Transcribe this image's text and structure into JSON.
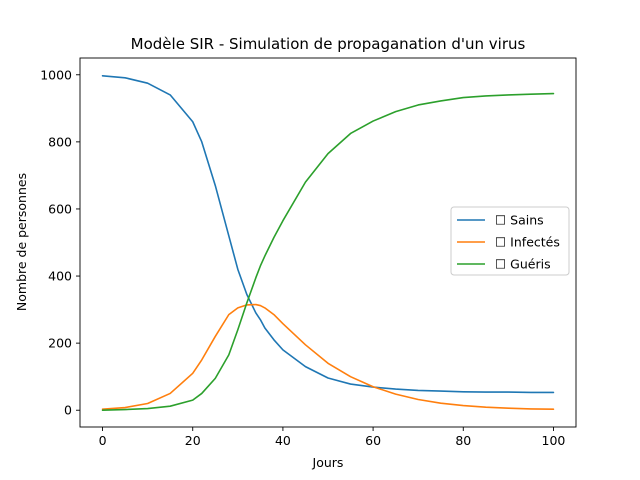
{
  "chart_data": {
    "type": "line",
    "title": "Modèle SIR - Simulation de propaganation d'un virus",
    "xlabel": "Jours",
    "ylabel": "Nombre de personnes",
    "xlim": [
      -5,
      105
    ],
    "ylim": [
      -50,
      1050
    ],
    "xticks": [
      0,
      20,
      40,
      60,
      80,
      100
    ],
    "yticks": [
      0,
      200,
      400,
      600,
      800,
      1000
    ],
    "grid": false,
    "legend_position": "center-right",
    "x": [
      0,
      5,
      10,
      15,
      20,
      22,
      25,
      28,
      30,
      32,
      34,
      35,
      36,
      38,
      40,
      45,
      50,
      55,
      60,
      65,
      70,
      75,
      80,
      85,
      90,
      95,
      100
    ],
    "series": [
      {
        "name": "☐ Sains",
        "color": "#1f77b4",
        "values": [
          997,
          991,
          975,
          940,
          860,
          800,
          670,
          520,
          420,
          345,
          290,
          270,
          245,
          210,
          180,
          130,
          96,
          78,
          69,
          63,
          59,
          57,
          55,
          54,
          54,
          53,
          53
        ]
      },
      {
        "name": "☐ Infectés",
        "color": "#ff7f0e",
        "values": [
          3,
          8,
          20,
          50,
          110,
          150,
          220,
          285,
          305,
          314,
          315,
          312,
          305,
          285,
          258,
          195,
          140,
          100,
          70,
          48,
          32,
          21,
          14,
          9,
          6,
          4,
          3
        ]
      },
      {
        "name": "☐ Guéris",
        "color": "#2ca02c",
        "values": [
          0,
          2,
          5,
          12,
          30,
          50,
          95,
          165,
          240,
          320,
          395,
          430,
          460,
          515,
          565,
          680,
          765,
          825,
          862,
          890,
          910,
          922,
          932,
          937,
          940,
          942,
          944
        ]
      }
    ]
  }
}
